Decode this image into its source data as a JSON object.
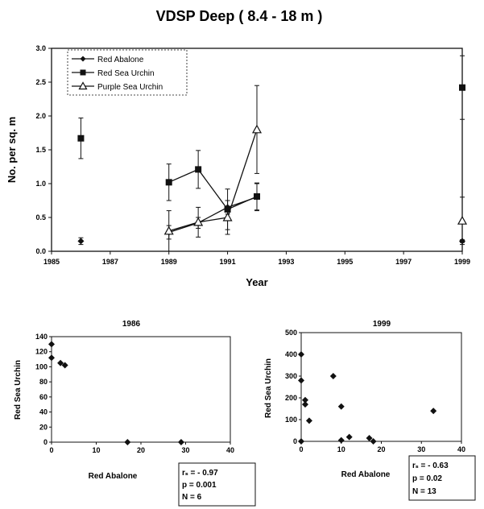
{
  "chart_data": [
    {
      "type": "line",
      "title": "VDSP Deep ( 8.4 - 18  m )",
      "xlabel": "Year",
      "ylabel": "No. per sq. m",
      "xlim": [
        1985,
        1999
      ],
      "ylim": [
        0.0,
        3.0
      ],
      "xticks": [
        "1985",
        "1987",
        "1989",
        "1991",
        "1993",
        "1995",
        "1997",
        "1999"
      ],
      "yticks": [
        "0.0",
        "0.5",
        "1.0",
        "1.5",
        "2.0",
        "2.5",
        "3.0"
      ],
      "legend_position": "top-left",
      "error_bars": true,
      "series": [
        {
          "name": "Red Abalone",
          "marker": "diamond",
          "connected_segments": [
            [
              0,
              0
            ]
          ],
          "points": [
            {
              "x": 1986,
              "y": 0.15,
              "err": 0.05
            },
            {
              "x": 1989,
              "y": 0.28,
              "err": 0.1
            },
            {
              "x": 1990,
              "y": 0.42,
              "err": 0.08
            },
            {
              "x": 1991,
              "y": 0.65,
              "err": 0.1
            },
            {
              "x": 1992,
              "y": 0.8,
              "err": 0.2
            },
            {
              "x": 1999,
              "y": 0.15,
              "err": 0.02
            }
          ],
          "lines": [
            [
              1,
              2,
              3,
              4
            ]
          ]
        },
        {
          "name": "Red Sea Urchin",
          "marker": "square",
          "points": [
            {
              "x": 1986,
              "y": 1.67,
              "err": 0.3
            },
            {
              "x": 1989,
              "y": 1.02,
              "err": 0.27
            },
            {
              "x": 1990,
              "y": 1.21,
              "err": 0.28
            },
            {
              "x": 1991,
              "y": 0.62,
              "err": 0.3
            },
            {
              "x": 1992,
              "y": 0.81,
              "err": 0.2
            },
            {
              "x": 1999,
              "y": 2.42,
              "err": 0.47
            }
          ],
          "lines": [
            [
              1,
              2,
              3,
              4
            ]
          ]
        },
        {
          "name": "Purple Sea Urchin",
          "marker": "triangle",
          "points": [
            {
              "x": 1989,
              "y": 0.3,
              "err": 0.3
            },
            {
              "x": 1990,
              "y": 0.43,
              "err": 0.22
            },
            {
              "x": 1991,
              "y": 0.5,
              "err": 0.25
            },
            {
              "x": 1992,
              "y": 1.8,
              "err": 0.65
            },
            {
              "x": 1999,
              "y": 0.45,
              "err": 0.35
            }
          ],
          "lines": [
            [
              0,
              1,
              2,
              3
            ]
          ]
        }
      ]
    },
    {
      "type": "scatter",
      "title": "1986",
      "xlabel": "Red Abalone",
      "ylabel": "Red Sea Urchin",
      "xlim": [
        0,
        40
      ],
      "ylim": [
        0,
        140
      ],
      "xticks": [
        "0",
        "10",
        "20",
        "30",
        "40"
      ],
      "yticks": [
        "0",
        "20",
        "40",
        "60",
        "80",
        "100",
        "120",
        "140"
      ],
      "grid": false,
      "points": [
        {
          "x": 0,
          "y": 130
        },
        {
          "x": 0,
          "y": 112
        },
        {
          "x": 2,
          "y": 105
        },
        {
          "x": 3,
          "y": 102
        },
        {
          "x": 17,
          "y": 0
        },
        {
          "x": 29,
          "y": 0
        }
      ],
      "stats": [
        "rₛ = - 0.97",
        "p = 0.001",
        "N = 6"
      ]
    },
    {
      "type": "scatter",
      "title": "1999",
      "xlabel": "Red Abalone",
      "ylabel": "Red Sea Urchin",
      "xlim": [
        0,
        40
      ],
      "ylim": [
        0,
        500
      ],
      "xticks": [
        "0",
        "10",
        "20",
        "30",
        "40"
      ],
      "yticks": [
        "0",
        "100",
        "200",
        "300",
        "400",
        "500"
      ],
      "grid": false,
      "points": [
        {
          "x": 0,
          "y": 400
        },
        {
          "x": 0,
          "y": 280
        },
        {
          "x": 1,
          "y": 190
        },
        {
          "x": 1,
          "y": 170
        },
        {
          "x": 2,
          "y": 95
        },
        {
          "x": 8,
          "y": 300
        },
        {
          "x": 10,
          "y": 160
        },
        {
          "x": 10,
          "y": 5
        },
        {
          "x": 12,
          "y": 20
        },
        {
          "x": 17,
          "y": 15
        },
        {
          "x": 18,
          "y": 0
        },
        {
          "x": 33,
          "y": 140
        },
        {
          "x": 0,
          "y": 0
        }
      ],
      "stats": [
        "rₛ = - 0.63",
        "p = 0.02",
        "N = 13"
      ]
    }
  ]
}
